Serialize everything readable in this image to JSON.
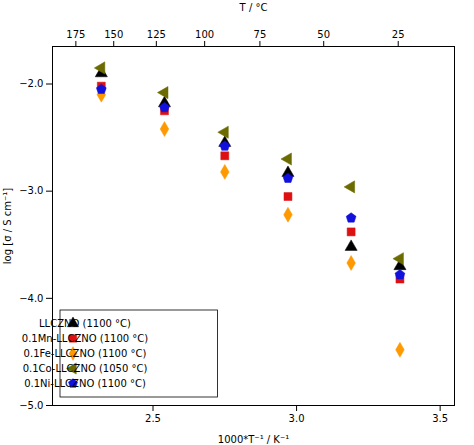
{
  "chart_data": {
    "type": "scatter",
    "xlabel": "1000*T⁻¹ / K⁻¹",
    "ylabel": "log [σ / S cm⁻¹]",
    "x2label": "T / °C",
    "x": [
      2.32,
      2.54,
      2.75,
      2.97,
      3.19,
      3.36
    ],
    "series": [
      {
        "name": "LLCZNO (1100 °C)",
        "color": "black",
        "marker": "triangle-up",
        "values": [
          -1.9,
          -2.18,
          -2.55,
          -2.83,
          -3.52,
          -3.7
        ]
      },
      {
        "name": "0.1Mn-LLCZNO (1100 °C)",
        "color": "#dd1111",
        "marker": "square",
        "values": [
          -2.02,
          -2.25,
          -2.67,
          -3.05,
          -3.38,
          -3.82
        ]
      },
      {
        "name": "0.1Fe-LLCZNO (1100 °C)",
        "color": "#ff9900",
        "marker": "diamond",
        "values": [
          -2.1,
          -2.42,
          -2.82,
          -3.22,
          -3.67,
          -4.48
        ]
      },
      {
        "name": "0.1Co-LLCZNO (1050 °C)",
        "color": "#6b6b00",
        "marker": "triangle-left",
        "values": [
          -1.85,
          -2.08,
          -2.45,
          -2.7,
          -2.96,
          -3.63
        ]
      },
      {
        "name": "0.1Ni-LLCZNO (1100 °C)",
        "color": "#1111dd",
        "marker": "pentagon",
        "values": [
          -2.05,
          -2.22,
          -2.58,
          -2.88,
          -3.25,
          -3.78
        ]
      }
    ],
    "xlim": [
      2.15,
      3.55
    ],
    "ylim": [
      -5.0,
      -1.65
    ],
    "xticks": [
      2.5,
      3.0,
      3.5
    ],
    "yticks": [
      -5,
      -4,
      -3,
      -2
    ],
    "x2ticks": [
      {
        "value": 2.2313957,
        "label": "175"
      },
      {
        "value": 2.3632281,
        "label": "150"
      },
      {
        "value": 2.5116163,
        "label": "125"
      },
      {
        "value": 2.6798874,
        "label": "100"
      },
      {
        "value": 2.8723253,
        "label": "75"
      },
      {
        "value": 3.0945381,
        "label": "50"
      },
      {
        "value": 3.3540168,
        "label": "25"
      }
    ],
    "grid": false,
    "legend": "lower left"
  }
}
